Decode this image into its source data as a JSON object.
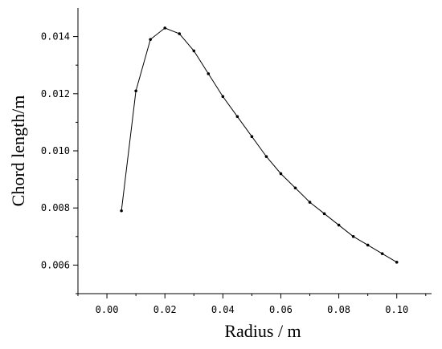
{
  "chart_data": {
    "type": "line",
    "xlabel": "Radius / m",
    "ylabel": "Chord length/m",
    "xlim": [
      -0.01,
      0.112
    ],
    "ylim": [
      0.005,
      0.015
    ],
    "xticks": [
      0.0,
      0.02,
      0.04,
      0.06,
      0.08,
      0.1
    ],
    "xtick_labels": [
      "0.00",
      "0.02",
      "0.04",
      "0.06",
      "0.08",
      "0.10"
    ],
    "yticks": [
      0.006,
      0.008,
      0.01,
      0.012,
      0.014
    ],
    "ytick_labels": [
      "0.006",
      "0.008",
      "0.010",
      "0.012",
      "0.014"
    ],
    "grid": false,
    "series": [
      {
        "color": "#000000",
        "x": [
          0.005,
          0.01,
          0.015,
          0.02,
          0.025,
          0.03,
          0.035,
          0.04,
          0.045,
          0.05,
          0.055,
          0.06,
          0.065,
          0.07,
          0.075,
          0.08,
          0.085,
          0.09,
          0.095,
          0.1
        ],
        "y": [
          0.0079,
          0.0121,
          0.0139,
          0.0143,
          0.0141,
          0.0135,
          0.0127,
          0.0119,
          0.0112,
          0.0105,
          0.0098,
          0.0092,
          0.0087,
          0.0082,
          0.0078,
          0.0074,
          0.007,
          0.0067,
          0.0064,
          0.0061
        ]
      }
    ]
  }
}
